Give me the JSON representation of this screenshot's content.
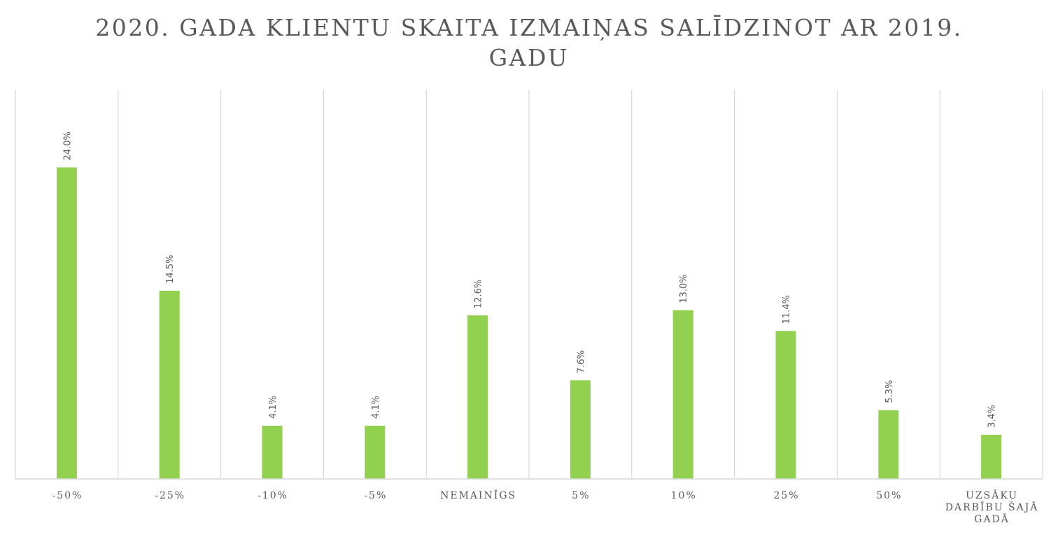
{
  "chart_data": {
    "type": "bar",
    "title": [
      "2020. GADA KLIENTU SKAITA IZMAIŅAS SALĪDZINOT AR 2019.",
      "GADU"
    ],
    "categories": [
      [
        "-50%"
      ],
      [
        "-25%"
      ],
      [
        "-10%"
      ],
      [
        "-5%"
      ],
      [
        "NEMAINĪGS"
      ],
      [
        "5%"
      ],
      [
        "10%"
      ],
      [
        "25%"
      ],
      [
        "50%"
      ],
      [
        "UZSĀKU",
        "DARBĪBU ŠAJĀ",
        "GADĀ"
      ]
    ],
    "values": [
      24.0,
      14.5,
      4.1,
      4.1,
      12.6,
      7.6,
      13.0,
      11.4,
      5.3,
      3.4
    ],
    "data_labels": [
      "24.0%",
      "14.5%",
      "4.1%",
      "4.1%",
      "12.6%",
      "7.6%",
      "13.0%",
      "11.4%",
      "5.3%",
      "3.4%"
    ],
    "ylim": [
      0,
      30
    ],
    "bar_color": "#92D050",
    "grid": "vertical category separators",
    "legend": "none",
    "xlabel": "",
    "ylabel": ""
  }
}
